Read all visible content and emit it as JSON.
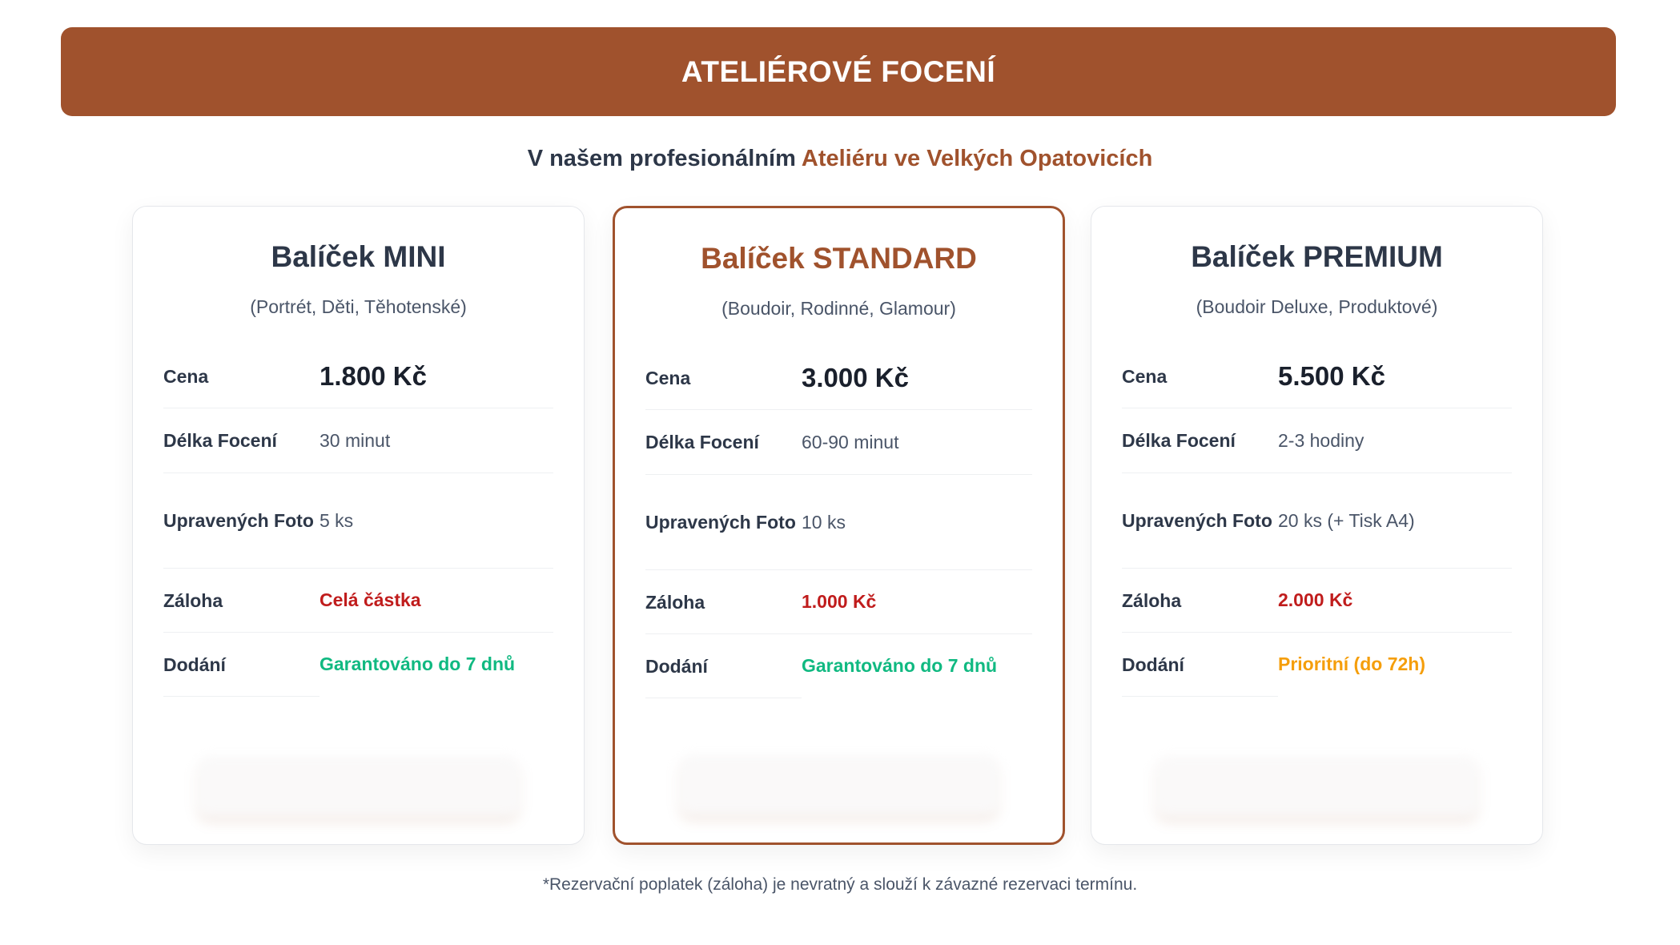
{
  "header": {
    "title": "ATELIÉROVÉ FOCENÍ"
  },
  "intro": {
    "prefix": "V našem profesionálním",
    "highlight": "Ateliéru ve Velkých Opatovicích"
  },
  "labels": {
    "price": "Cena",
    "duration": "Délka Focení",
    "photos": "Upravených Foto",
    "deposit": "Záloha",
    "delivery": "Dodání"
  },
  "packages": [
    {
      "title": "Balíček MINI",
      "subtitle": "(Portrét, Děti, Těhotenské)",
      "price": "1.800 Kč",
      "duration": "30 minut",
      "photos": "5 ks",
      "deposit": "Celá částka",
      "delivery": "Garantováno do 7 dnů",
      "delivery_color": "green",
      "featured": false
    },
    {
      "title": "Balíček STANDARD",
      "subtitle": "(Boudoir, Rodinné, Glamour)",
      "price": "3.000 Kč",
      "duration": "60-90 minut",
      "photos": "10 ks",
      "deposit": "1.000 Kč",
      "delivery": "Garantováno do 7 dnů",
      "delivery_color": "green",
      "featured": true
    },
    {
      "title": "Balíček PREMIUM",
      "subtitle": "(Boudoir Deluxe, Produktové)",
      "price": "5.500 Kč",
      "duration": "2-3 hodiny",
      "photos": "20 ks (+ Tisk A4)",
      "deposit": "2.000 Kč",
      "delivery": "Prioritní (do 72h)",
      "delivery_color": "orange",
      "featured": false
    }
  ],
  "footnote": "*Rezervační poplatek (záloha) je nevratný a slouží k závazné rezervaci termínu.",
  "colors": {
    "brand": "#a0522d",
    "deposit": "#c01c1c",
    "green": "#10b981",
    "orange": "#f59e0b"
  }
}
